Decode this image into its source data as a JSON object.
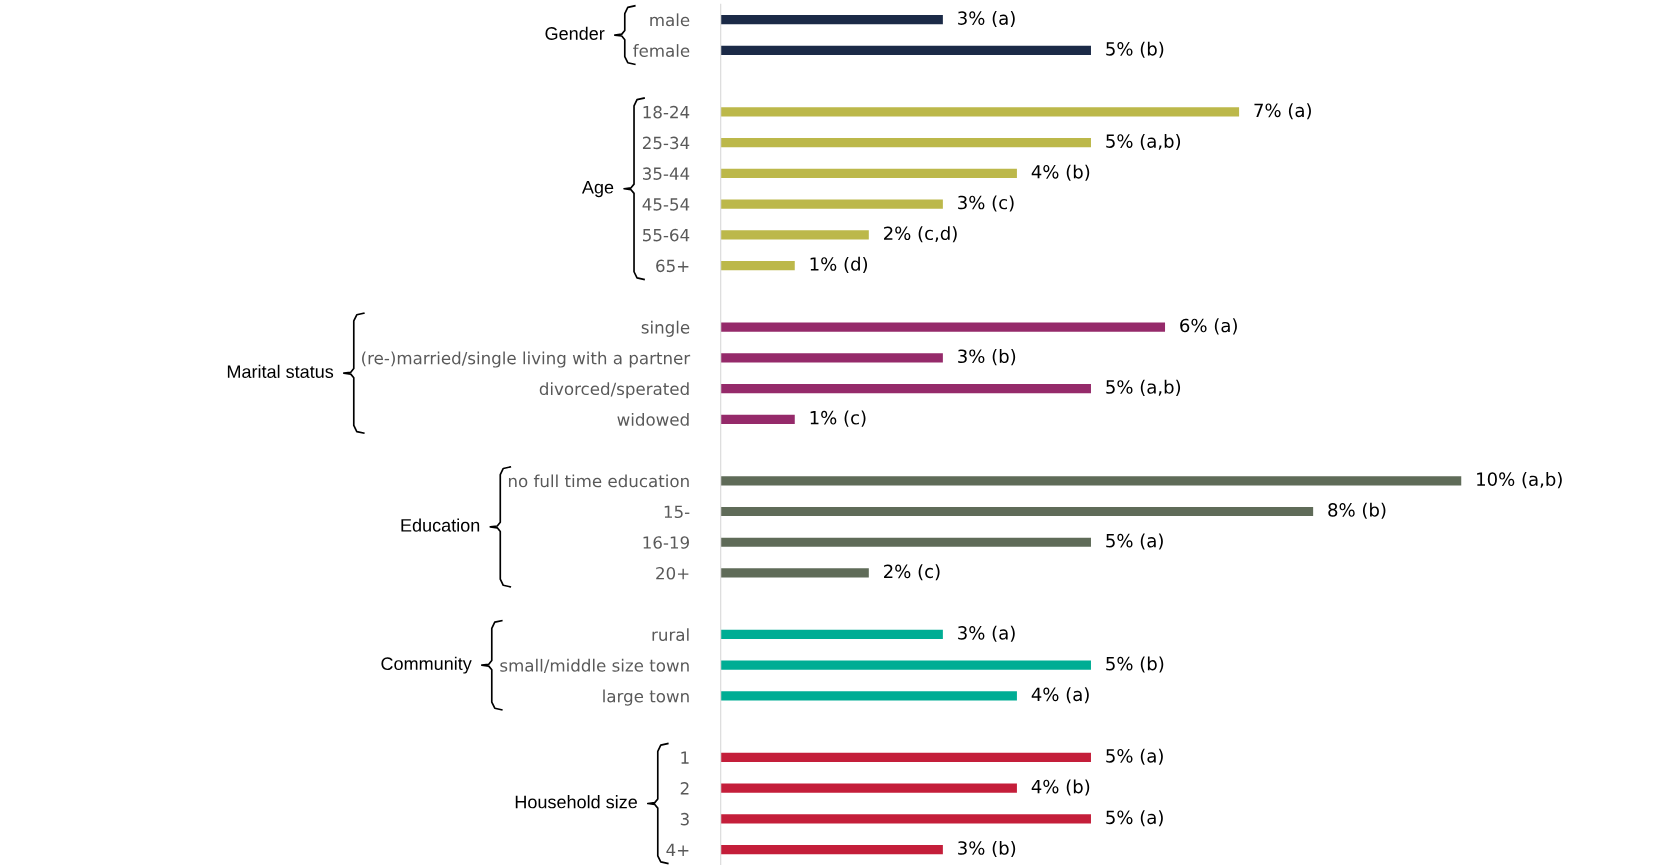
{
  "chart_data": {
    "type": "bar",
    "orientation": "horizontal",
    "tick_labels": "y",
    "annotations": [
      "Gender",
      "Age",
      "Marital status",
      "Education",
      "Community",
      "Household size"
    ],
    "categories": [
      "male",
      "female",
      null,
      "18-24",
      "25-34",
      "35-44",
      "45-54",
      "55-64",
      "65+",
      null,
      "single",
      "(re-)married/single living with a partner",
      "divorced/sperated",
      "widowed",
      null,
      "no full time education",
      "15-",
      "16-19",
      "20+",
      null,
      "rural",
      "small/middle size town",
      "large town",
      null,
      "1",
      "2",
      "3",
      "4+"
    ],
    "series": [
      {
        "color": "#1b2a47",
        "values": [
          3,
          5,
          null,
          null,
          null,
          null,
          null,
          null,
          null,
          null,
          null,
          null,
          null,
          null,
          null,
          null,
          null,
          null,
          null,
          null,
          null,
          null,
          null,
          null,
          null,
          null,
          null,
          null
        ],
        "value_labels": [
          "3% (a)",
          "5% (b)",
          null,
          null,
          null,
          null,
          null,
          null,
          null,
          null,
          null,
          null,
          null,
          null,
          null,
          null,
          null,
          null,
          null,
          null,
          null,
          null,
          null,
          null,
          null,
          null,
          null,
          null
        ]
      },
      {
        "color": "#bcb84a",
        "values": [
          null,
          null,
          null,
          7,
          5,
          4,
          3,
          2,
          1,
          null,
          null,
          null,
          null,
          null,
          null,
          null,
          null,
          null,
          null,
          null,
          null,
          null,
          null,
          null,
          null,
          null,
          null,
          null
        ],
        "value_labels": [
          null,
          null,
          null,
          "7% (a)",
          "5% (a,b)",
          "4% (b)",
          "3% (c)",
          "2% (c,d)",
          "1% (d)",
          null,
          null,
          null,
          null,
          null,
          null,
          null,
          null,
          null,
          null,
          null,
          null,
          null,
          null,
          null,
          null,
          null,
          null,
          null
        ]
      },
      {
        "color": "#952a6a",
        "values": [
          null,
          null,
          null,
          null,
          null,
          null,
          null,
          null,
          null,
          null,
          6,
          3,
          5,
          1,
          null,
          null,
          null,
          null,
          null,
          null,
          null,
          null,
          null,
          null,
          null,
          null,
          null,
          null
        ],
        "value_labels": [
          null,
          null,
          null,
          null,
          null,
          null,
          null,
          null,
          null,
          null,
          "6% (a)",
          "3% (b)",
          "5% (a,b)",
          "1% (c)",
          null,
          null,
          null,
          null,
          null,
          null,
          null,
          null,
          null,
          null,
          null,
          null,
          null,
          null
        ]
      },
      {
        "color": "#5f6b58",
        "values": [
          null,
          null,
          null,
          null,
          null,
          null,
          null,
          null,
          null,
          null,
          null,
          null,
          null,
          null,
          null,
          10,
          8,
          5,
          2,
          null,
          null,
          null,
          null,
          null,
          null,
          null,
          null,
          null
        ],
        "value_labels": [
          null,
          null,
          null,
          null,
          null,
          null,
          null,
          null,
          null,
          null,
          null,
          null,
          null,
          null,
          null,
          "10% (a,b)",
          "8% (b)",
          "5% (a)",
          "2% (c)",
          null,
          null,
          null,
          null,
          null,
          null,
          null,
          null,
          null
        ]
      },
      {
        "color": "#00ad94",
        "values": [
          null,
          null,
          null,
          null,
          null,
          null,
          null,
          null,
          null,
          null,
          null,
          null,
          null,
          null,
          null,
          null,
          null,
          null,
          null,
          null,
          3,
          5,
          4,
          null,
          null,
          null,
          null,
          null
        ],
        "value_labels": [
          null,
          null,
          null,
          null,
          null,
          null,
          null,
          null,
          null,
          null,
          null,
          null,
          null,
          null,
          null,
          null,
          null,
          null,
          null,
          null,
          "3% (a)",
          "5% (b)",
          "4% (a)",
          null,
          null,
          null,
          null,
          null
        ]
      },
      {
        "color": "#c41e3a",
        "values": [
          null,
          null,
          null,
          null,
          null,
          null,
          null,
          null,
          null,
          null,
          null,
          null,
          null,
          null,
          null,
          null,
          null,
          null,
          null,
          null,
          null,
          null,
          null,
          null,
          5,
          4,
          5,
          3
        ],
        "value_labels": [
          null,
          null,
          null,
          null,
          null,
          null,
          null,
          null,
          null,
          null,
          null,
          null,
          null,
          null,
          null,
          null,
          null,
          null,
          null,
          null,
          null,
          null,
          null,
          null,
          "5% (a)",
          "4% (b)",
          "5% (a)",
          "3% (b)"
        ]
      }
    ]
  }
}
